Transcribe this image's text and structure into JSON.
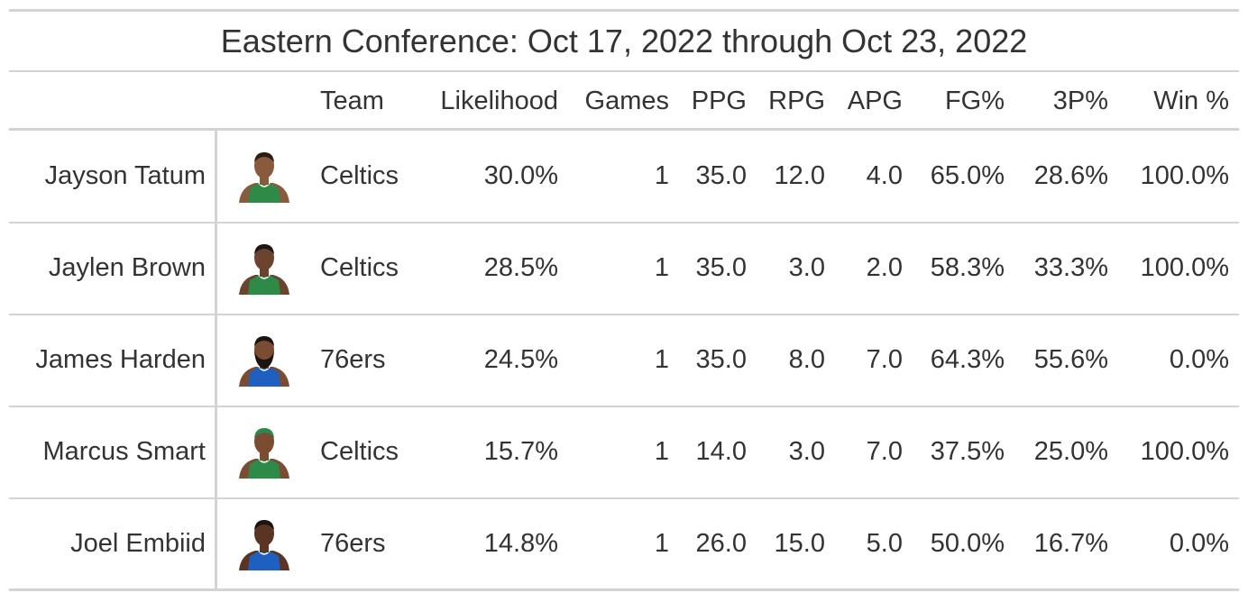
{
  "chart_data": {
    "type": "table",
    "title": "Eastern Conference: Oct 17, 2022 through Oct 23, 2022",
    "columns": [
      "",
      "",
      "Team",
      "Likelihood",
      "Games",
      "PPG",
      "RPG",
      "APG",
      "FG%",
      "3P%",
      "Win %"
    ],
    "rows": [
      {
        "player": "Jayson Tatum",
        "team": "Celtics",
        "likelihood": "30.0%",
        "games": "1",
        "ppg": "35.0",
        "rpg": "12.0",
        "apg": "4.0",
        "fg": "65.0%",
        "tp": "28.6%",
        "win": "100.0%",
        "jersey": "#2e8b47",
        "skin": "#8a5a3c",
        "hair": "#2a1d16"
      },
      {
        "player": "Jaylen Brown",
        "team": "Celtics",
        "likelihood": "28.5%",
        "games": "1",
        "ppg": "35.0",
        "rpg": "3.0",
        "apg": "2.0",
        "fg": "58.3%",
        "tp": "33.3%",
        "win": "100.0%",
        "jersey": "#2e8b47",
        "skin": "#6b4430",
        "hair": "#1e1612"
      },
      {
        "player": "James Harden",
        "team": "76ers",
        "likelihood": "24.5%",
        "games": "1",
        "ppg": "35.0",
        "rpg": "8.0",
        "apg": "7.0",
        "fg": "64.3%",
        "tp": "55.6%",
        "win": "0.0%",
        "jersey": "#1f5fbf",
        "skin": "#7a4d33",
        "hair": "#1a1412"
      },
      {
        "player": "Marcus Smart",
        "team": "Celtics",
        "likelihood": "15.7%",
        "games": "1",
        "ppg": "14.0",
        "rpg": "3.0",
        "apg": "7.0",
        "fg": "37.5%",
        "tp": "25.0%",
        "win": "100.0%",
        "jersey": "#2e8b47",
        "skin": "#7a4d33",
        "hair": "#2a8a4a"
      },
      {
        "player": "Joel Embiid",
        "team": "76ers",
        "likelihood": "14.8%",
        "games": "1",
        "ppg": "26.0",
        "rpg": "15.0",
        "apg": "5.0",
        "fg": "50.0%",
        "tp": "16.7%",
        "win": "0.0%",
        "jersey": "#1f5fbf",
        "skin": "#5a3524",
        "hair": "#1a1412"
      }
    ]
  }
}
